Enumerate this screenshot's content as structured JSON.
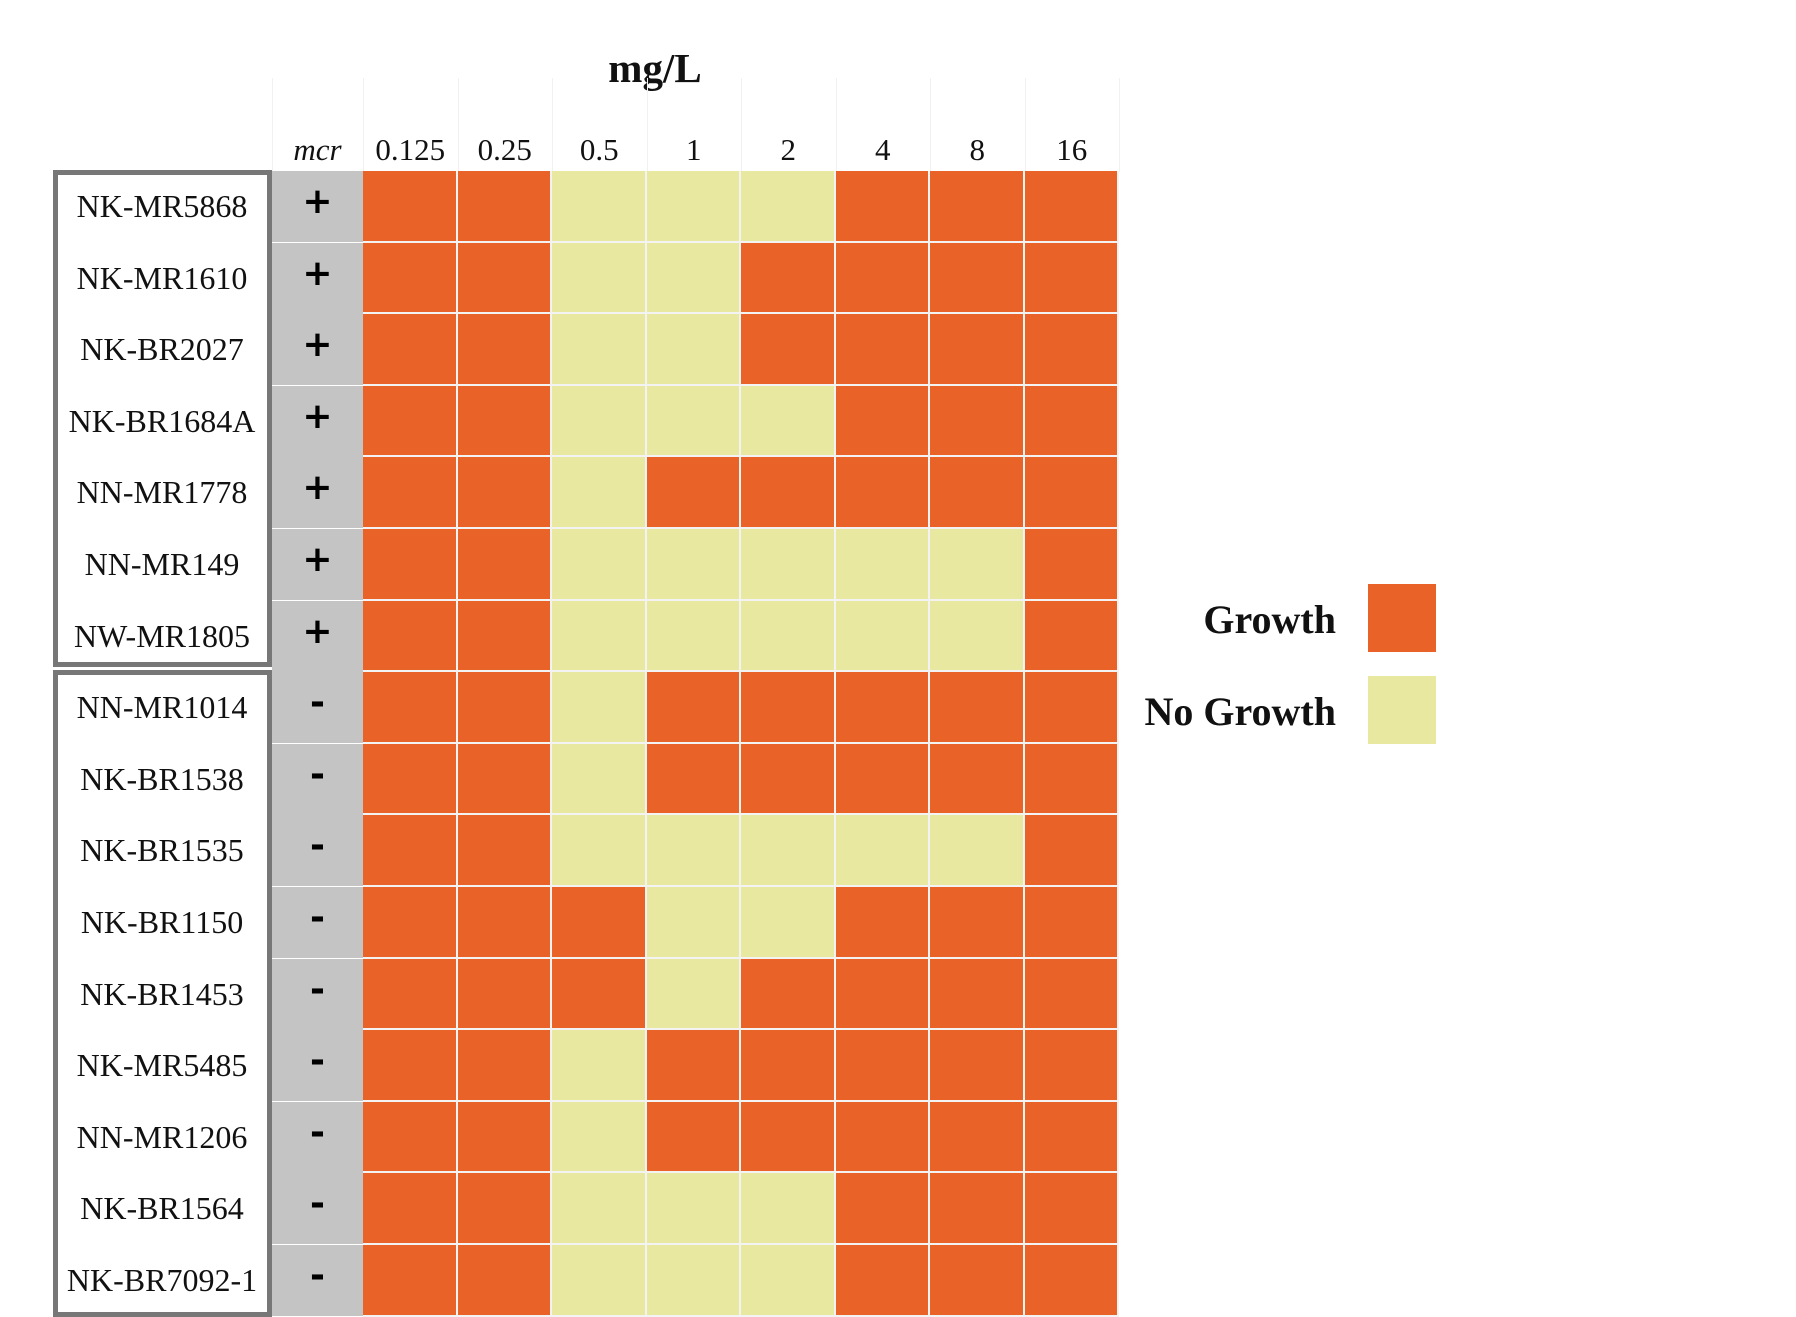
{
  "chart_data": {
    "type": "heatmap",
    "title": "mg/L",
    "indicator_header": "mcr",
    "columns": [
      "0.125",
      "0.25",
      "0.5",
      "1",
      "2",
      "4",
      "8",
      "16"
    ],
    "rows": [
      {
        "strain": "NK-MR5868",
        "mcr": "+",
        "values": [
          1,
          1,
          0,
          0,
          0,
          1,
          1,
          1
        ]
      },
      {
        "strain": "NK-MR1610",
        "mcr": "+",
        "values": [
          1,
          1,
          0,
          0,
          1,
          1,
          1,
          1
        ]
      },
      {
        "strain": "NK-BR2027",
        "mcr": "+",
        "values": [
          1,
          1,
          0,
          0,
          1,
          1,
          1,
          1
        ]
      },
      {
        "strain": "NK-BR1684A",
        "mcr": "+",
        "values": [
          1,
          1,
          0,
          0,
          0,
          1,
          1,
          1
        ]
      },
      {
        "strain": "NN-MR1778",
        "mcr": "+",
        "values": [
          1,
          1,
          0,
          1,
          1,
          1,
          1,
          1
        ]
      },
      {
        "strain": "NN-MR149",
        "mcr": "+",
        "values": [
          1,
          1,
          0,
          0,
          0,
          0,
          0,
          1
        ]
      },
      {
        "strain": "NW-MR1805",
        "mcr": "+",
        "values": [
          1,
          1,
          0,
          0,
          0,
          0,
          0,
          1
        ]
      },
      {
        "strain": "NN-MR1014",
        "mcr": "-",
        "values": [
          1,
          1,
          0,
          1,
          1,
          1,
          1,
          1
        ]
      },
      {
        "strain": "NK-BR1538",
        "mcr": "-",
        "values": [
          1,
          1,
          0,
          1,
          1,
          1,
          1,
          1
        ]
      },
      {
        "strain": "NK-BR1535",
        "mcr": "-",
        "values": [
          1,
          1,
          0,
          0,
          0,
          0,
          0,
          1
        ]
      },
      {
        "strain": "NK-BR1150",
        "mcr": "-",
        "values": [
          1,
          1,
          1,
          0,
          0,
          1,
          1,
          1
        ]
      },
      {
        "strain": "NK-BR1453",
        "mcr": "-",
        "values": [
          1,
          1,
          1,
          0,
          1,
          1,
          1,
          1
        ]
      },
      {
        "strain": "NK-MR5485",
        "mcr": "-",
        "values": [
          1,
          1,
          0,
          1,
          1,
          1,
          1,
          1
        ]
      },
      {
        "strain": "NN-MR1206",
        "mcr": "-",
        "values": [
          1,
          1,
          0,
          1,
          1,
          1,
          1,
          1
        ]
      },
      {
        "strain": "NK-BR1564",
        "mcr": "-",
        "values": [
          1,
          1,
          0,
          0,
          0,
          1,
          1,
          1
        ]
      },
      {
        "strain": "NK-BR7092-1",
        "mcr": "-",
        "values": [
          1,
          1,
          0,
          0,
          0,
          1,
          1,
          1
        ]
      }
    ],
    "legend": [
      {
        "label": "Growth",
        "value": 1,
        "color": "#e96328"
      },
      {
        "label": "No Growth",
        "value": 0,
        "color": "#e8e8a0"
      }
    ],
    "legend_position": "right",
    "colors": {
      "growth": "#e96328",
      "no_growth": "#e8e8a0",
      "mcr_column": "#c4c4c4",
      "group_border": "#777777"
    }
  }
}
